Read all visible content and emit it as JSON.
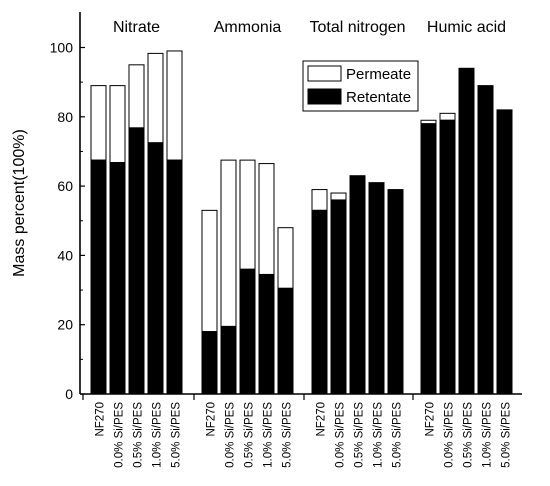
{
  "chart_data": {
    "type": "bar",
    "stacked": true,
    "ylabel": "Mass percent(100%)",
    "ylim": [
      0,
      110
    ],
    "yticks": [
      0,
      20,
      40,
      60,
      80,
      100
    ],
    "grid": false,
    "legend": {
      "placement": "top-center",
      "entries": [
        {
          "name": "Permeate",
          "color": "#ffffff"
        },
        {
          "name": "Retentate",
          "color": "#000000"
        }
      ]
    },
    "categories": [
      "NF270",
      "0.0% Si/PES",
      "0.5% Si/PES",
      "1.0% Si/PES",
      "5.0% Si/PES"
    ],
    "groups": [
      {
        "label": "Nitrate",
        "retentate": [
          67.5,
          66.8,
          76.8,
          72.5,
          67.5
        ],
        "total": [
          89,
          89,
          95,
          98.3,
          99
        ]
      },
      {
        "label": "Ammonia",
        "retentate": [
          18,
          19.5,
          36,
          34.5,
          30.5
        ],
        "total": [
          53,
          67.5,
          67.5,
          66.5,
          48
        ]
      },
      {
        "label": "Total nitrogen",
        "retentate": [
          53,
          56,
          63,
          61,
          59
        ],
        "total": [
          59,
          58,
          63,
          61,
          59
        ]
      },
      {
        "label": "Humic acid",
        "retentate": [
          78,
          79,
          94,
          89,
          82
        ],
        "total": [
          79,
          81,
          94,
          89,
          82
        ]
      }
    ]
  }
}
